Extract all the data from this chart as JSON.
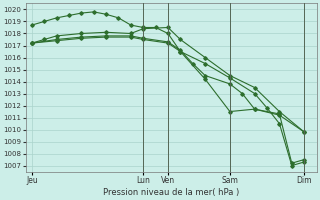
{
  "background_color": "#cceee8",
  "grid_color": "#aad4cc",
  "line_color": "#2d6e2d",
  "marker_color": "#2d6e2d",
  "xlabel": "Pression niveau de la mer( hPa )",
  "ylim": [
    1006.5,
    1020.5
  ],
  "yticks": [
    1007,
    1008,
    1009,
    1010,
    1011,
    1012,
    1013,
    1014,
    1015,
    1016,
    1017,
    1018,
    1019,
    1020
  ],
  "xtick_labels": [
    "Jeu",
    "Lun",
    "Ven",
    "Sam",
    "Dim"
  ],
  "xtick_positions": [
    0,
    9,
    11,
    16,
    22
  ],
  "xlim": [
    -0.5,
    23.0
  ],
  "vline_positions": [
    9,
    11,
    16,
    22
  ],
  "line1_x": [
    0,
    1,
    2,
    4,
    6,
    8,
    9,
    11,
    12,
    14,
    16,
    18,
    20,
    22
  ],
  "line1_y": [
    1017.2,
    1017.5,
    1017.8,
    1018.0,
    1018.1,
    1018.0,
    1018.4,
    1018.5,
    1017.5,
    1016.0,
    1014.5,
    1013.5,
    1011.5,
    1009.8
  ],
  "line2_x": [
    0,
    1,
    2,
    3,
    4,
    5,
    6,
    7,
    8,
    9,
    10,
    11,
    12,
    14,
    16,
    18,
    20,
    22
  ],
  "line2_y": [
    1018.7,
    1019.0,
    1019.3,
    1019.5,
    1019.7,
    1019.8,
    1019.6,
    1019.3,
    1018.7,
    1018.5,
    1018.5,
    1018.0,
    1016.5,
    1014.2,
    1011.5,
    1011.7,
    1011.2,
    1009.8
  ],
  "line3_x": [
    0,
    2,
    4,
    6,
    8,
    9,
    11,
    12,
    13,
    14,
    16,
    17,
    18,
    20,
    21,
    22
  ],
  "line3_y": [
    1017.2,
    1017.5,
    1017.7,
    1017.8,
    1017.8,
    1017.6,
    1017.3,
    1016.6,
    1015.5,
    1014.5,
    1013.8,
    1013.0,
    1011.7,
    1011.3,
    1007.2,
    1007.5
  ],
  "line4_x": [
    0,
    2,
    4,
    6,
    8,
    9,
    11,
    12,
    14,
    16,
    18,
    19,
    20,
    21,
    22
  ],
  "line4_y": [
    1017.2,
    1017.4,
    1017.6,
    1017.7,
    1017.7,
    1017.5,
    1017.2,
    1016.5,
    1015.5,
    1014.3,
    1013.0,
    1011.8,
    1010.5,
    1007.0,
    1007.3
  ]
}
